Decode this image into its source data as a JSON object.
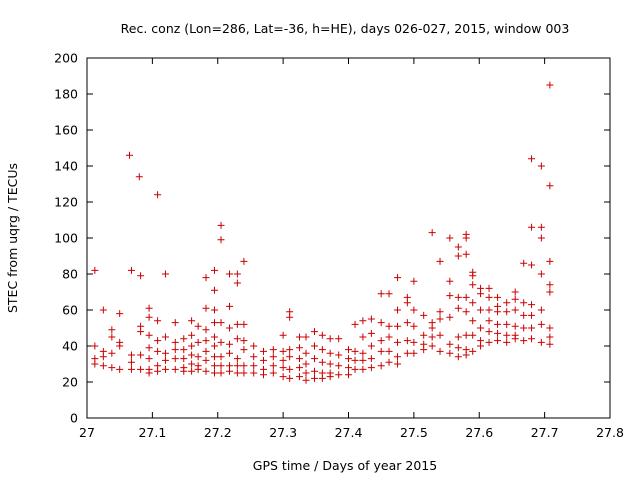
{
  "chart_data": {
    "type": "scatter",
    "title": "Rec. conz (Lon=286, Lat=-36, h=HE), days 026-027, 2015, window 003",
    "xlabel": "GPS time / Days of year 2015",
    "ylabel": "STEC from uqrg / TECUs",
    "xlim": [
      27,
      27.8
    ],
    "ylim": [
      0,
      200
    ],
    "x_ticks": [
      27,
      27.1,
      27.2,
      27.3,
      27.4,
      27.5,
      27.6,
      27.7,
      27.8
    ],
    "y_ticks": [
      0,
      20,
      40,
      60,
      80,
      100,
      120,
      140,
      160,
      180,
      200
    ],
    "x_tick_labels": [
      "27",
      "27.1",
      "27.2",
      "27.3",
      "27.4",
      "27.5",
      "27.6",
      "27.7",
      "27.8"
    ],
    "y_tick_labels": [
      "0",
      "20",
      "40",
      "60",
      "80",
      "100",
      "120",
      "140",
      "160",
      "180",
      "200"
    ],
    "grid": false,
    "marker": "+",
    "color": "#cc0000",
    "points": [
      [
        27.012,
        82
      ],
      [
        27.012,
        40
      ],
      [
        27.012,
        33
      ],
      [
        27.012,
        30
      ],
      [
        27.025,
        60
      ],
      [
        27.025,
        37
      ],
      [
        27.025,
        34
      ],
      [
        27.025,
        29
      ],
      [
        27.038,
        49
      ],
      [
        27.038,
        45
      ],
      [
        27.038,
        36
      ],
      [
        27.038,
        28
      ],
      [
        27.05,
        58
      ],
      [
        27.05,
        42
      ],
      [
        27.05,
        40
      ],
      [
        27.05,
        27
      ],
      [
        27.065,
        146
      ],
      [
        27.068,
        82
      ],
      [
        27.068,
        35
      ],
      [
        27.068,
        31
      ],
      [
        27.068,
        27
      ],
      [
        27.08,
        134
      ],
      [
        27.082,
        79
      ],
      [
        27.082,
        51
      ],
      [
        27.082,
        48
      ],
      [
        27.082,
        35
      ],
      [
        27.082,
        27
      ],
      [
        27.095,
        61
      ],
      [
        27.095,
        56
      ],
      [
        27.095,
        46
      ],
      [
        27.095,
        39
      ],
      [
        27.095,
        33
      ],
      [
        27.095,
        27
      ],
      [
        27.095,
        25
      ],
      [
        27.108,
        124
      ],
      [
        27.108,
        54
      ],
      [
        27.108,
        43
      ],
      [
        27.108,
        37
      ],
      [
        27.108,
        29
      ],
      [
        27.108,
        26
      ],
      [
        27.12,
        80
      ],
      [
        27.12,
        45
      ],
      [
        27.12,
        36
      ],
      [
        27.12,
        32
      ],
      [
        27.12,
        27
      ],
      [
        27.135,
        53
      ],
      [
        27.135,
        42
      ],
      [
        27.135,
        38
      ],
      [
        27.135,
        33
      ],
      [
        27.135,
        27
      ],
      [
        27.148,
        44
      ],
      [
        27.148,
        38
      ],
      [
        27.148,
        33
      ],
      [
        27.148,
        28
      ],
      [
        27.148,
        26
      ],
      [
        27.16,
        54
      ],
      [
        27.16,
        46
      ],
      [
        27.16,
        40
      ],
      [
        27.16,
        35
      ],
      [
        27.16,
        30
      ],
      [
        27.16,
        26
      ],
      [
        27.17,
        51
      ],
      [
        27.17,
        42
      ],
      [
        27.17,
        34
      ],
      [
        27.17,
        29
      ],
      [
        27.17,
        27
      ],
      [
        27.182,
        78
      ],
      [
        27.182,
        61
      ],
      [
        27.182,
        49
      ],
      [
        27.182,
        43
      ],
      [
        27.182,
        37
      ],
      [
        27.182,
        32
      ],
      [
        27.182,
        26
      ],
      [
        27.195,
        82
      ],
      [
        27.195,
        71
      ],
      [
        27.195,
        60
      ],
      [
        27.195,
        53
      ],
      [
        27.195,
        45
      ],
      [
        27.195,
        40
      ],
      [
        27.195,
        34
      ],
      [
        27.195,
        29
      ],
      [
        27.195,
        25
      ],
      [
        27.205,
        107
      ],
      [
        27.205,
        99
      ],
      [
        27.205,
        53
      ],
      [
        27.205,
        42
      ],
      [
        27.205,
        34
      ],
      [
        27.205,
        29
      ],
      [
        27.205,
        25
      ],
      [
        27.218,
        80
      ],
      [
        27.218,
        62
      ],
      [
        27.218,
        50
      ],
      [
        27.218,
        41
      ],
      [
        27.218,
        36
      ],
      [
        27.218,
        29
      ],
      [
        27.218,
        26
      ],
      [
        27.23,
        80
      ],
      [
        27.23,
        75
      ],
      [
        27.23,
        52
      ],
      [
        27.23,
        44
      ],
      [
        27.23,
        33
      ],
      [
        27.23,
        29
      ],
      [
        27.23,
        25
      ],
      [
        27.24,
        87
      ],
      [
        27.24,
        52
      ],
      [
        27.24,
        43
      ],
      [
        27.24,
        38
      ],
      [
        27.24,
        29
      ],
      [
        27.24,
        25
      ],
      [
        27.255,
        40
      ],
      [
        27.255,
        34
      ],
      [
        27.255,
        29
      ],
      [
        27.255,
        25
      ],
      [
        27.27,
        37
      ],
      [
        27.27,
        32
      ],
      [
        27.27,
        27
      ],
      [
        27.27,
        24
      ],
      [
        27.285,
        38
      ],
      [
        27.285,
        34
      ],
      [
        27.285,
        29
      ],
      [
        27.285,
        25
      ],
      [
        27.3,
        46
      ],
      [
        27.3,
        37
      ],
      [
        27.3,
        32
      ],
      [
        27.3,
        28
      ],
      [
        27.3,
        23
      ],
      [
        27.31,
        59
      ],
      [
        27.31,
        56
      ],
      [
        27.31,
        38
      ],
      [
        27.31,
        34
      ],
      [
        27.31,
        27
      ],
      [
        27.31,
        22
      ],
      [
        27.325,
        45
      ],
      [
        27.325,
        39
      ],
      [
        27.325,
        33
      ],
      [
        27.325,
        28
      ],
      [
        27.325,
        23
      ],
      [
        27.335,
        45
      ],
      [
        27.335,
        36
      ],
      [
        27.335,
        30
      ],
      [
        27.335,
        25
      ],
      [
        27.335,
        21
      ],
      [
        27.348,
        48
      ],
      [
        27.348,
        40
      ],
      [
        27.348,
        33
      ],
      [
        27.348,
        26
      ],
      [
        27.348,
        22
      ],
      [
        27.36,
        46
      ],
      [
        27.36,
        38
      ],
      [
        27.36,
        31
      ],
      [
        27.36,
        25
      ],
      [
        27.36,
        22
      ],
      [
        27.372,
        44
      ],
      [
        27.372,
        36
      ],
      [
        27.372,
        30
      ],
      [
        27.372,
        25
      ],
      [
        27.372,
        23
      ],
      [
        27.385,
        44
      ],
      [
        27.385,
        35
      ],
      [
        27.385,
        29
      ],
      [
        27.385,
        24
      ],
      [
        27.4,
        38
      ],
      [
        27.4,
        33
      ],
      [
        27.4,
        28
      ],
      [
        27.4,
        24
      ],
      [
        27.41,
        52
      ],
      [
        27.41,
        37
      ],
      [
        27.41,
        32
      ],
      [
        27.41,
        27
      ],
      [
        27.422,
        54
      ],
      [
        27.422,
        45
      ],
      [
        27.422,
        36
      ],
      [
        27.422,
        32
      ],
      [
        27.422,
        27
      ],
      [
        27.435,
        55
      ],
      [
        27.435,
        47
      ],
      [
        27.435,
        40
      ],
      [
        27.435,
        33
      ],
      [
        27.435,
        28
      ],
      [
        27.45,
        69
      ],
      [
        27.45,
        53
      ],
      [
        27.45,
        43
      ],
      [
        27.45,
        37
      ],
      [
        27.45,
        29
      ],
      [
        27.462,
        69
      ],
      [
        27.462,
        51
      ],
      [
        27.462,
        45
      ],
      [
        27.462,
        37
      ],
      [
        27.462,
        31
      ],
      [
        27.475,
        78
      ],
      [
        27.475,
        60
      ],
      [
        27.475,
        51
      ],
      [
        27.475,
        42
      ],
      [
        27.475,
        34
      ],
      [
        27.475,
        30
      ],
      [
        27.49,
        67
      ],
      [
        27.49,
        64
      ],
      [
        27.49,
        53
      ],
      [
        27.49,
        43
      ],
      [
        27.49,
        36
      ],
      [
        27.5,
        76
      ],
      [
        27.5,
        60
      ],
      [
        27.5,
        51
      ],
      [
        27.5,
        42
      ],
      [
        27.5,
        36
      ],
      [
        27.515,
        57
      ],
      [
        27.515,
        46
      ],
      [
        27.515,
        41
      ],
      [
        27.515,
        38
      ],
      [
        27.528,
        103
      ],
      [
        27.528,
        53
      ],
      [
        27.528,
        50
      ],
      [
        27.528,
        45
      ],
      [
        27.528,
        40
      ],
      [
        27.54,
        87
      ],
      [
        27.54,
        59
      ],
      [
        27.54,
        55
      ],
      [
        27.54,
        46
      ],
      [
        27.54,
        37
      ],
      [
        27.555,
        100
      ],
      [
        27.555,
        76
      ],
      [
        27.555,
        68
      ],
      [
        27.555,
        56
      ],
      [
        27.555,
        41
      ],
      [
        27.555,
        36
      ],
      [
        27.568,
        95
      ],
      [
        27.568,
        90
      ],
      [
        27.568,
        67
      ],
      [
        27.568,
        61
      ],
      [
        27.568,
        45
      ],
      [
        27.568,
        39
      ],
      [
        27.568,
        34
      ],
      [
        27.58,
        102
      ],
      [
        27.58,
        100
      ],
      [
        27.58,
        91
      ],
      [
        27.58,
        67
      ],
      [
        27.58,
        59
      ],
      [
        27.58,
        46
      ],
      [
        27.58,
        38
      ],
      [
        27.58,
        35
      ],
      [
        27.59,
        81
      ],
      [
        27.59,
        79
      ],
      [
        27.59,
        74
      ],
      [
        27.59,
        64
      ],
      [
        27.59,
        54
      ],
      [
        27.59,
        46
      ],
      [
        27.59,
        37
      ],
      [
        27.602,
        72
      ],
      [
        27.602,
        69
      ],
      [
        27.602,
        60
      ],
      [
        27.602,
        50
      ],
      [
        27.602,
        43
      ],
      [
        27.602,
        40
      ],
      [
        27.615,
        72
      ],
      [
        27.615,
        67
      ],
      [
        27.615,
        60
      ],
      [
        27.615,
        54
      ],
      [
        27.615,
        48
      ],
      [
        27.615,
        42
      ],
      [
        27.628,
        67
      ],
      [
        27.628,
        62
      ],
      [
        27.628,
        59
      ],
      [
        27.628,
        52
      ],
      [
        27.628,
        47
      ],
      [
        27.628,
        43
      ],
      [
        27.642,
        64
      ],
      [
        27.642,
        59
      ],
      [
        27.642,
        52
      ],
      [
        27.642,
        46
      ],
      [
        27.642,
        42
      ],
      [
        27.655,
        70
      ],
      [
        27.655,
        66
      ],
      [
        27.655,
        60
      ],
      [
        27.655,
        51
      ],
      [
        27.655,
        46
      ],
      [
        27.655,
        44
      ],
      [
        27.668,
        86
      ],
      [
        27.668,
        64
      ],
      [
        27.668,
        57
      ],
      [
        27.668,
        50
      ],
      [
        27.668,
        43
      ],
      [
        27.68,
        144
      ],
      [
        27.68,
        106
      ],
      [
        27.68,
        85
      ],
      [
        27.68,
        63
      ],
      [
        27.68,
        57
      ],
      [
        27.68,
        50
      ],
      [
        27.68,
        44
      ],
      [
        27.695,
        140
      ],
      [
        27.695,
        106
      ],
      [
        27.695,
        100
      ],
      [
        27.695,
        80
      ],
      [
        27.695,
        60
      ],
      [
        27.695,
        52
      ],
      [
        27.695,
        42
      ],
      [
        27.708,
        185
      ],
      [
        27.708,
        129
      ],
      [
        27.708,
        87
      ],
      [
        27.708,
        74
      ],
      [
        27.708,
        70
      ],
      [
        27.708,
        50
      ],
      [
        27.708,
        45
      ],
      [
        27.708,
        41
      ]
    ]
  }
}
